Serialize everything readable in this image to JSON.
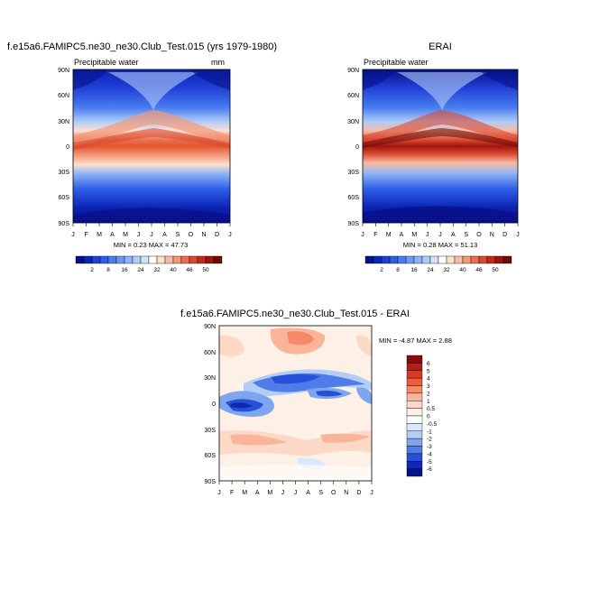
{
  "chart_data": [
    {
      "type": "heatmap",
      "title": "f.e15a6.FAMIPC5.ne30_ne30.Club_Test.015 (yrs 1979-1980)",
      "subtitle": "Precipitable water",
      "units": "mm",
      "x": [
        "J",
        "F",
        "M",
        "A",
        "M",
        "J",
        "J",
        "A",
        "S",
        "O",
        "N",
        "D",
        "J"
      ],
      "y_ticks": [
        "90N",
        "60N",
        "30N",
        "0",
        "30S",
        "60S",
        "90S"
      ],
      "ylim": [
        -90,
        90
      ],
      "stats_text": "MIN =   0.23 MAX =  47.73",
      "colorbar": {
        "levels": [
          2,
          8,
          16,
          24,
          32,
          40,
          46,
          50
        ],
        "colors": [
          "#08108a",
          "#0b24b4",
          "#1f40d6",
          "#2e5ee8",
          "#4a7df0",
          "#6b99f4",
          "#8db4f7",
          "#b0ccf8",
          "#d2e2f8",
          "#ffffff",
          "#fce0d0",
          "#f8bca6",
          "#f39878",
          "#ea7050",
          "#db4a30",
          "#c42a18",
          "#9e1410",
          "#700a08"
        ]
      }
    },
    {
      "type": "heatmap",
      "title": "ERAI",
      "subtitle": "Precipitable water",
      "x": [
        "J",
        "F",
        "M",
        "A",
        "M",
        "J",
        "J",
        "A",
        "S",
        "O",
        "N",
        "D",
        "J"
      ],
      "y_ticks": [
        "90N",
        "60N",
        "30N",
        "0",
        "30S",
        "60S",
        "90S"
      ],
      "ylim": [
        -90,
        90
      ],
      "stats_text": "MIN =   0.28 MAX =  51.13",
      "colorbar": {
        "levels": [
          2,
          8,
          16,
          24,
          32,
          40,
          46,
          50
        ],
        "colors": [
          "#08108a",
          "#0b24b4",
          "#1f40d6",
          "#2e5ee8",
          "#4a7df0",
          "#6b99f4",
          "#8db4f7",
          "#b0ccf8",
          "#d2e2f8",
          "#ffffff",
          "#fce0d0",
          "#f8bca6",
          "#f39878",
          "#ea7050",
          "#db4a30",
          "#c42a18",
          "#9e1410",
          "#700a08"
        ]
      }
    },
    {
      "type": "heatmap",
      "title": "f.e15a6.FAMIPC5.ne30_ne30.Club_Test.015 - ERAI",
      "x": [
        "J",
        "F",
        "M",
        "A",
        "M",
        "J",
        "J",
        "A",
        "S",
        "O",
        "N",
        "D",
        "J"
      ],
      "y_ticks": [
        "90N",
        "60N",
        "30N",
        "0",
        "30S",
        "60S",
        "90S"
      ],
      "ylim": [
        -90,
        90
      ],
      "stats_text": "MIN =  -4.87 MAX =   2.88",
      "colorbar": {
        "levels": [
          "6",
          "5",
          "4",
          "3",
          "2",
          "1",
          "0.5",
          "0",
          "-0.5",
          "-1",
          "-2",
          "-3",
          "-4",
          "-5",
          "-6"
        ],
        "colors": [
          "#8a0a0a",
          "#b81c14",
          "#d83a22",
          "#ec5e3c",
          "#f5896a",
          "#f9b49a",
          "#fcd8c6",
          "#fdf0e6",
          "#ffffff",
          "#dbe8fb",
          "#b4cdf7",
          "#7ea6f0",
          "#4f7ce8",
          "#2650d8",
          "#1028b0",
          "#06128a"
        ]
      }
    }
  ]
}
